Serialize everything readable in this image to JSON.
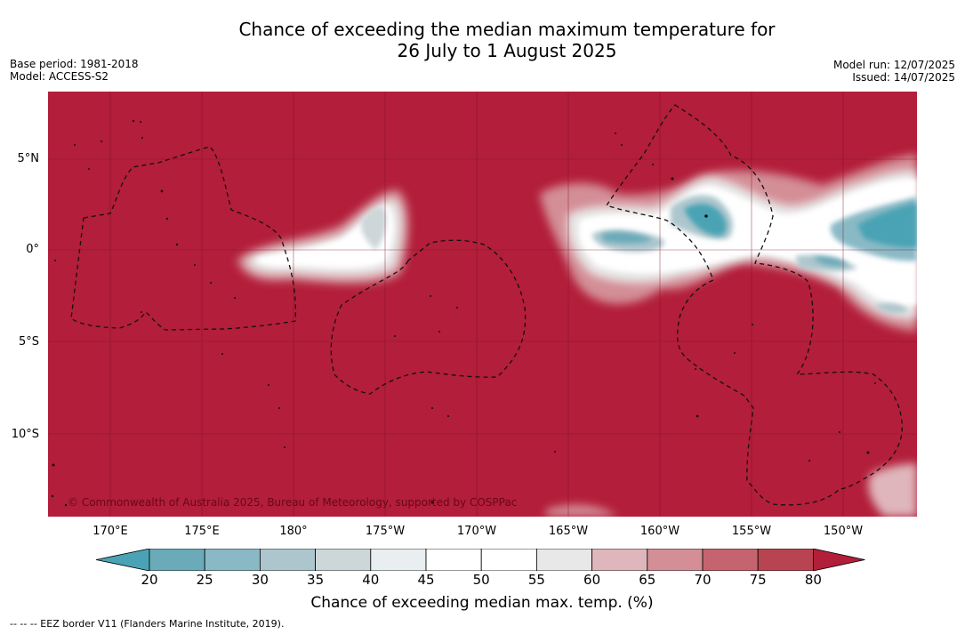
{
  "title": {
    "line1": "Chance of exceeding the median maximum temperature for",
    "line2": "26 July to 1 August 2025"
  },
  "meta_left": {
    "base_period": "Base period: 1981-2018",
    "model": "Model: ACCESS-S2"
  },
  "meta_right": {
    "model_run": "Model run: 12/07/2025",
    "issued": "Issued: 14/07/2025"
  },
  "copyright": "© Commonwealth of Australia 2025, Bureau of Meteorology, supported by COSPPac",
  "lat_labels": [
    "5°N",
    "0°",
    "5°S",
    "10°S"
  ],
  "lon_labels": [
    "170°E",
    "175°E",
    "180°",
    "175°W",
    "170°W",
    "165°W",
    "160°W",
    "155°W",
    "150°W"
  ],
  "colorbar": {
    "ticks": [
      "20",
      "25",
      "30",
      "35",
      "40",
      "45",
      "50",
      "55",
      "60",
      "65",
      "70",
      "75",
      "80"
    ],
    "label": "Chance of exceeding median max. temp. (%)",
    "colors": {
      "below20": "#4aa3b4",
      "c20_25": "#6aaab9",
      "c25_30": "#8ab9c6",
      "c30_35": "#adc6cd",
      "c35_40": "#cdd6d9",
      "c40_45": "#e9eef0",
      "c45_50": "#ffffff",
      "c50_55": "#ffffff",
      "c55_60": "#e8e8e8",
      "c60_65": "#dfb6bb",
      "c65_70": "#d38e96",
      "c70_75": "#c5646f",
      "c75_80": "#b94451",
      "above80": "#b31e3a"
    }
  },
  "footer": "--  --  -- EEZ border V11 (Flanders Marine Institute, 2019)."
}
